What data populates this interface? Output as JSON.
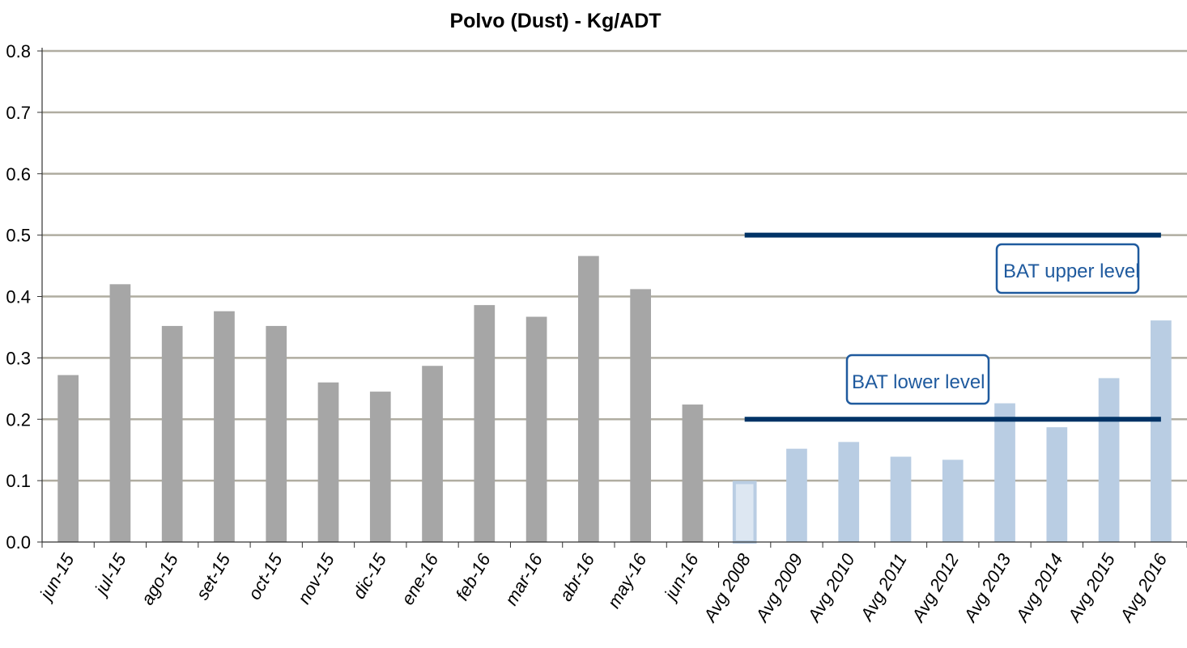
{
  "chart_data": {
    "type": "bar",
    "title": "Polvo (Dust) - Kg/ADT",
    "xlabel": "",
    "ylabel": "",
    "ylim": [
      0,
      0.8
    ],
    "yticks": [
      "0.0",
      "0.1",
      "0.2",
      "0.3",
      "0.4",
      "0.5",
      "0.6",
      "0.7",
      "0.8"
    ],
    "grid": true,
    "categories": [
      "jun-15",
      "jul-15",
      "ago-15",
      "set-15",
      "oct-15",
      "nov-15",
      "dic-15",
      "ene-16",
      "feb-16",
      "mar-16",
      "abr-16",
      "may-16",
      "jun-16",
      "Avg 2008",
      "Avg 2009",
      "Avg 2010",
      "Avg 2011",
      "Avg 2012",
      "Avg 2013",
      "Avg 2014",
      "Avg 2015",
      "Avg 2016"
    ],
    "values": [
      0.272,
      0.42,
      0.352,
      0.376,
      0.352,
      0.26,
      0.245,
      0.287,
      0.386,
      0.367,
      0.466,
      0.412,
      0.224,
      0.097,
      0.152,
      0.163,
      0.139,
      0.134,
      0.226,
      0.187,
      0.267,
      0.361
    ],
    "monthly_color": "#a6a6a6",
    "average_color": "#b9cde3",
    "reference_lines": [
      {
        "label": "BAT upper level",
        "value": 0.5,
        "from": "Avg 2008",
        "to": "Avg 2016",
        "color": "#003366"
      },
      {
        "label": "BAT lower level",
        "value": 0.2,
        "from": "Avg 2008",
        "to": "Avg 2016",
        "color": "#003366"
      }
    ],
    "label_color": "#1f5a9e"
  }
}
